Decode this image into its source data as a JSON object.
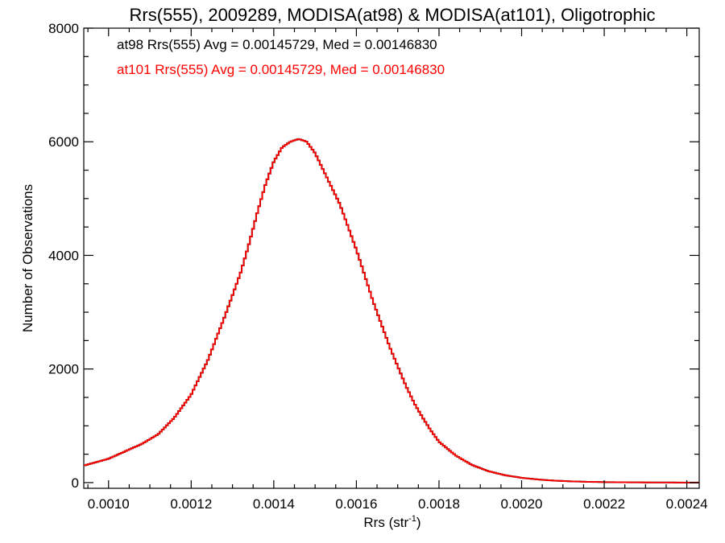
{
  "chart_data": {
    "type": "histogram",
    "title": "Rrs(555), 2009289, MODISA(at98) & MODISA(at101), Oligotrophic",
    "xlabel": "Rrs (str",
    "xlabel_sup": "-1",
    "xlabel_close": ")",
    "ylabel": "Number of Observations",
    "xlim": [
      0.00094,
      0.00243
    ],
    "ylim": [
      -100,
      8000
    ],
    "x_ticks": [
      0.001,
      0.0012,
      0.0014,
      0.0016,
      0.0018,
      0.002,
      0.0022,
      0.0024
    ],
    "x_tick_labels": [
      "0.0010",
      "0.0012",
      "0.0014",
      "0.0016",
      "0.0018",
      "0.0020",
      "0.0022",
      "0.0024"
    ],
    "y_ticks": [
      0,
      2000,
      4000,
      6000,
      8000
    ],
    "y_tick_labels": [
      "0",
      "2000",
      "4000",
      "6000",
      "8000"
    ],
    "annotations": [
      {
        "text": "at98 Rrs(555) Avg = 0.00145729, Med = 0.00146830",
        "color": "#000000"
      },
      {
        "text": "at101 Rrs(555) Avg = 0.00145729, Med = 0.00146830",
        "color": "#ff0000"
      }
    ],
    "series": [
      {
        "color": "#000000",
        "x": [
          0.00094,
          0.001,
          0.00104,
          0.00108,
          0.00112,
          0.00116,
          0.0012,
          0.00124,
          0.00128,
          0.00132,
          0.00134,
          0.00136,
          0.00138,
          0.0014,
          0.00142,
          0.00144,
          0.00146,
          0.00148,
          0.0015,
          0.00152,
          0.00154,
          0.00156,
          0.00158,
          0.0016,
          0.00162,
          0.00164,
          0.00166,
          0.00168,
          0.0017,
          0.00172,
          0.00174,
          0.00176,
          0.00178,
          0.0018,
          0.00184,
          0.00188,
          0.00192,
          0.00196,
          0.002,
          0.00204,
          0.00208,
          0.00212,
          0.00216,
          0.0022,
          0.00224,
          0.00228,
          0.00232,
          0.00236,
          0.0024,
          0.00243
        ],
        "y": [
          300,
          420,
          550,
          680,
          850,
          1150,
          1550,
          2150,
          2900,
          3700,
          4200,
          4750,
          5250,
          5650,
          5900,
          6000,
          6050,
          6000,
          5800,
          5500,
          5200,
          4900,
          4500,
          4100,
          3650,
          3200,
          2800,
          2400,
          2050,
          1700,
          1400,
          1150,
          920,
          720,
          480,
          310,
          200,
          130,
          85,
          55,
          35,
          22,
          14,
          9,
          6,
          4,
          3,
          2,
          1,
          1
        ]
      },
      {
        "color": "#ff0000",
        "x": [
          0.00094,
          0.001,
          0.00104,
          0.00108,
          0.00112,
          0.00116,
          0.0012,
          0.00124,
          0.00128,
          0.00132,
          0.00134,
          0.00136,
          0.00138,
          0.0014,
          0.00142,
          0.00144,
          0.00146,
          0.00148,
          0.0015,
          0.00152,
          0.00154,
          0.00156,
          0.00158,
          0.0016,
          0.00162,
          0.00164,
          0.00166,
          0.00168,
          0.0017,
          0.00172,
          0.00174,
          0.00176,
          0.00178,
          0.0018,
          0.00184,
          0.00188,
          0.00192,
          0.00196,
          0.002,
          0.00204,
          0.00208,
          0.00212,
          0.00216,
          0.0022,
          0.00224,
          0.00228,
          0.00232,
          0.00236,
          0.0024,
          0.00243
        ],
        "y": [
          300,
          420,
          550,
          680,
          850,
          1150,
          1550,
          2150,
          2900,
          3700,
          4200,
          4750,
          5250,
          5650,
          5900,
          6000,
          6050,
          6000,
          5800,
          5500,
          5200,
          4900,
          4500,
          4100,
          3650,
          3200,
          2800,
          2400,
          2050,
          1700,
          1400,
          1150,
          920,
          720,
          480,
          310,
          200,
          130,
          85,
          55,
          35,
          22,
          14,
          9,
          6,
          4,
          3,
          2,
          1,
          1
        ]
      }
    ]
  }
}
